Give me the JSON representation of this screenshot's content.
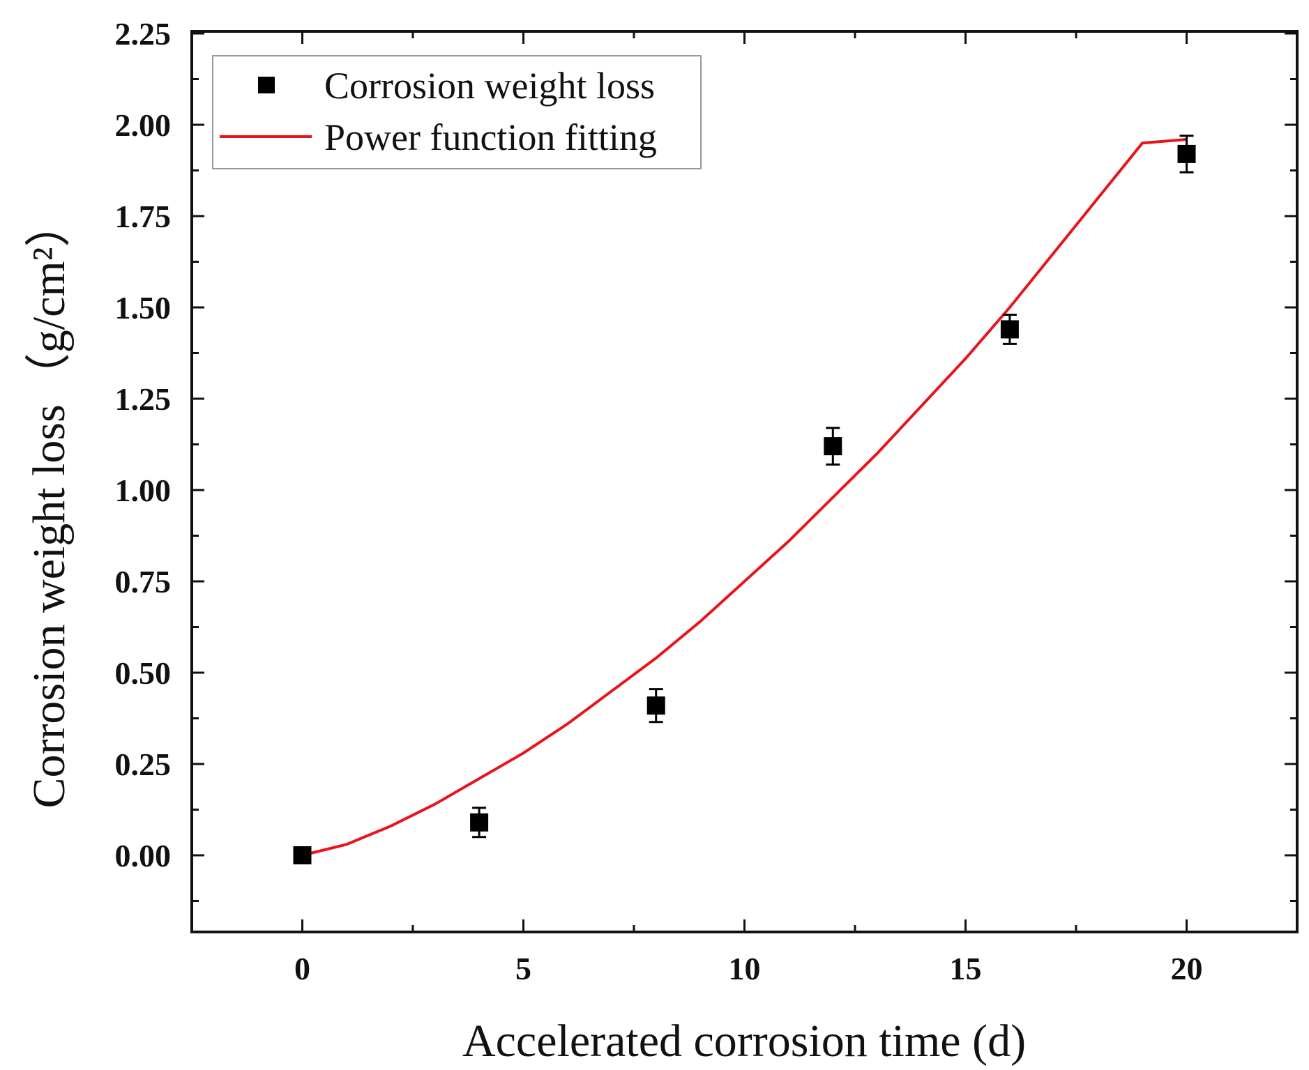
{
  "chart_data": {
    "type": "scatter",
    "xlabel": "Accelerated corrosion time (d)",
    "ylabel": "Corrosion weight loss",
    "ylabel_unit": "（g/cm²）",
    "xlim": [
      -2.5,
      22.5
    ],
    "ylim": [
      -0.2,
      2.25
    ],
    "x_ticks": [
      0,
      5,
      10,
      15,
      20
    ],
    "x_tick_labels": [
      "0",
      "5",
      "10",
      "15",
      "20"
    ],
    "y_ticks": [
      0.0,
      0.25,
      0.5,
      0.75,
      1.0,
      1.25,
      1.5,
      1.75,
      2.0,
      2.25
    ],
    "y_tick_labels": [
      "0.00",
      "0.25",
      "0.50",
      "0.75",
      "1.00",
      "1.25",
      "1.50",
      "1.75",
      "2.00",
      "2.25"
    ],
    "series": [
      {
        "name": "Corrosion weight loss",
        "kind": "points",
        "color": "#000000",
        "x": [
          0,
          4,
          8,
          12,
          16,
          20
        ],
        "y": [
          0.0,
          0.09,
          0.41,
          1.12,
          1.44,
          1.92
        ],
        "error": [
          0.02,
          0.04,
          0.045,
          0.05,
          0.04,
          0.05
        ]
      },
      {
        "name": "Power function fitting",
        "kind": "line",
        "color": "#e8141c",
        "x": [
          0,
          1,
          2,
          3,
          4,
          5,
          6,
          7,
          8,
          9,
          10,
          11,
          12,
          13,
          14,
          15,
          16,
          17,
          18,
          19,
          20
        ],
        "y": [
          0.0,
          0.03,
          0.08,
          0.14,
          0.21,
          0.28,
          0.36,
          0.45,
          0.54,
          0.64,
          0.75,
          0.86,
          0.98,
          1.1,
          1.23,
          1.36,
          1.5,
          1.65,
          1.8,
          1.95,
          1.96
        ]
      }
    ],
    "legend": {
      "position": "top-left",
      "entries": [
        "Corrosion weight loss",
        "Power function fitting"
      ]
    }
  }
}
